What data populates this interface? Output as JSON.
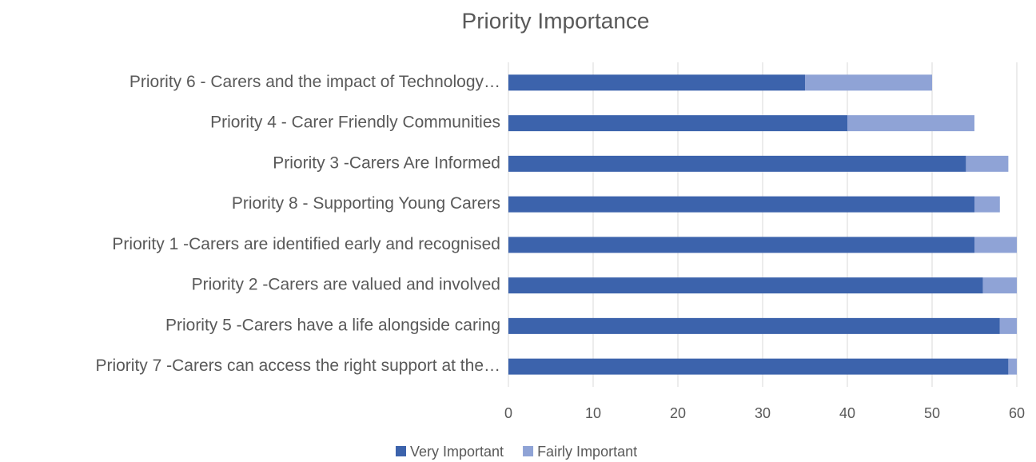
{
  "chart_data": {
    "type": "stacked_barh",
    "title": "Priority Importance",
    "categories": [
      "Priority 6 - Carers and the impact of Technology…",
      "Priority 4 - Carer Friendly Communities",
      "Priority 3 -Carers Are Informed",
      "Priority 8 - Supporting Young Carers",
      "Priority 1 -Carers are identified early and recognised",
      "Priority 2 -Carers are valued and involved",
      "Priority 5 -Carers have a life alongside caring",
      "Priority 7 -Carers can access the right support at the…"
    ],
    "series": [
      {
        "name": "Very Important",
        "color": "#3c63ac",
        "values": [
          35,
          40,
          54,
          55,
          55,
          56,
          58,
          59
        ]
      },
      {
        "name": "Fairly Important",
        "color": "#8fa3d6",
        "values": [
          15,
          15,
          5,
          3,
          5,
          4,
          2,
          1
        ]
      }
    ],
    "xlim": [
      0,
      60
    ],
    "xticks": [
      0,
      10,
      20,
      30,
      40,
      50,
      60
    ],
    "grid": true,
    "legend": "bottom"
  }
}
